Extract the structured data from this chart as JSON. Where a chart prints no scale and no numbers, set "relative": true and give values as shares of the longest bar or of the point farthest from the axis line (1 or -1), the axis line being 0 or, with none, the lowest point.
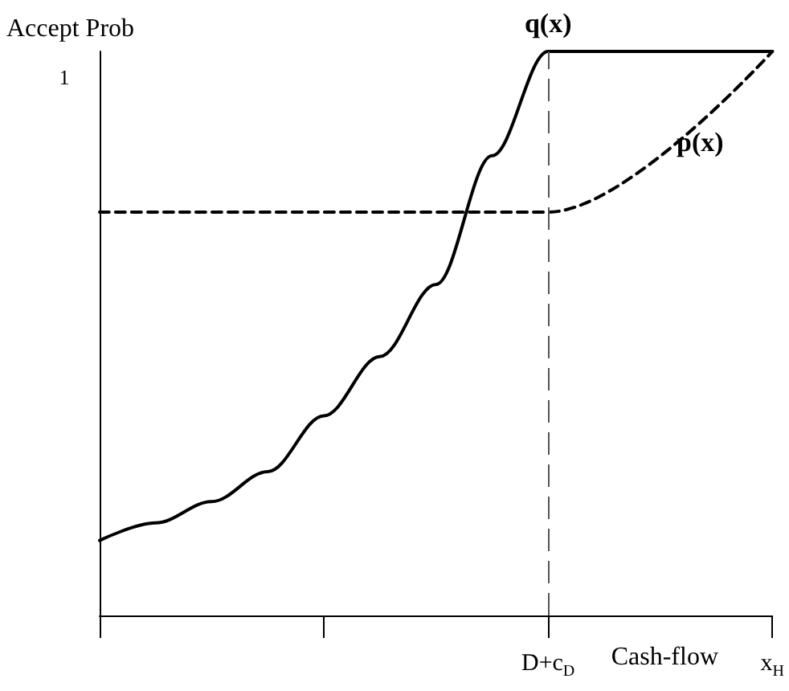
{
  "chart_data": {
    "type": "line",
    "relative": true,
    "ylabel": "Accept Prob",
    "xlabel": "Cash-flow",
    "categories": [
      null,
      null,
      null,
      null,
      null,
      null,
      null,
      null,
      "D+c$_{D}$",
      null,
      null,
      null,
      "x$_{H}$"
    ],
    "series": [
      {
        "name": "q(x)",
        "color": "#000000",
        "line_style": "solid",
        "values": [
          0.133,
          0.164,
          0.202,
          0.255,
          0.354,
          0.459,
          0.587,
          0.815,
          1,
          1,
          1,
          1,
          1
        ]
      },
      {
        "name": "p(x)",
        "color": "#000000",
        "line_style": "dashed",
        "values": [
          0.715,
          null,
          null,
          null,
          null,
          null,
          null,
          null,
          0.715,
          null,
          null,
          null,
          1
        ]
      }
    ],
    "ref_lines": [
      {
        "axis": "x",
        "value": "D+c$_{D}$",
        "color": "#555555",
        "line_style": "dashed"
      }
    ],
    "annotations": [
      "1"
    ],
    "grid": false,
    "legend": false,
    "marker": "none"
  }
}
